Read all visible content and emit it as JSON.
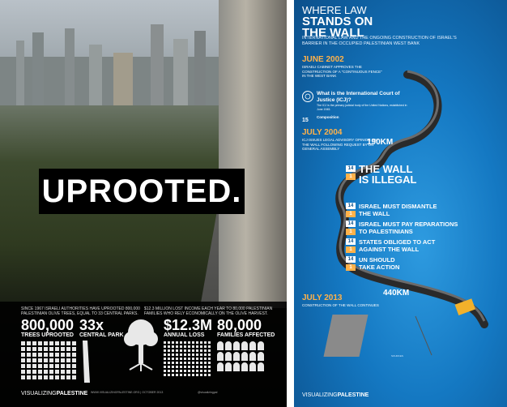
{
  "left": {
    "headline": "UPROOTED.",
    "intro_1": "SINCE 1967 ISRAELI AUTHORITIES HAVE UPROOTED 800,000 PALESTINIAN OLIVE TREES, EQUAL TO 33 CENTRAL PARKS.",
    "intro_2": "$12.3 MILLION LOST INCOME EACH YEAR TO 80,000 PALESTINIAN FAMILIES WHO RELY ECONOMICALLY ON THE OLIVE HARVEST.",
    "stats": [
      {
        "value": "800,000",
        "label": "TREES UPROOTED"
      },
      {
        "value": "33x",
        "label": "CENTRAL PARK"
      },
      {
        "value": "$12.3M",
        "label": "ANNUAL LOSS"
      },
      {
        "value": "80,000",
        "label": "FAMILIES AFFECTED"
      }
    ],
    "brand_plain": "VISUALIZING",
    "brand_bold": "PALESTINE",
    "footer_small": "WWW.VISUALIZINGPALESTINE.ORG | OCTOBER 2013",
    "footer_social": "@visualizingpal"
  },
  "right": {
    "title_line1": "WHERE LAW",
    "title_line2": "STANDS ON",
    "title_line3": "THE WALL",
    "subtitle": "INTERNATIONAL LAW AND THE ONGOING CONSTRUCTION OF ISRAEL'S BARRIER IN THE OCCUPIED PALESTINIAN WEST BANK",
    "date_1": "JUNE 2002",
    "text_1": "ISRAELI CABINET APPROVES THE CONSTRUCTION OF A \"CONTINUOUS FENCE\" IN THE WEST BANK",
    "icj_title": "What is the International Court of Justice (ICJ)?",
    "icj_text": "The ICJ is the primary judicial body of the United Nations, established in June 1945.",
    "composition_label": "Composition",
    "composition_count": "15",
    "date_2": "JULY 2004",
    "text_2": "ICJ ISSUES LEGAL ADVISORY OPINION ON THE WALL FOLLOWING REQUEST BY UN GENERAL ASSEMBLY",
    "km_1": "190KM",
    "verdict_big_1": "THE WALL",
    "verdict_big_2": "IS ILLEGAL",
    "verdict_num_a": "14",
    "verdict_num_b": "1",
    "rulings": [
      {
        "a": "14",
        "b": "1",
        "text_1": "ISRAEL MUST DISMANTLE",
        "text_2": "THE WALL"
      },
      {
        "a": "14",
        "b": "1",
        "text_1": "ISRAEL MUST PAY REPARATIONS",
        "text_2": "TO PALESTINIANS"
      },
      {
        "a": "14",
        "b": "1",
        "text_1": "STATES OBLIGED TO ACT",
        "text_2": "AGAINST THE WALL"
      },
      {
        "a": "14",
        "b": "1",
        "text_1": "UN SHOULD",
        "text_2": "TAKE ACTION"
      }
    ],
    "km_2": "440KM",
    "date_3": "JULY 2013",
    "text_3": "CONSTRUCTION OF THE WALL CONTINUES",
    "sources": "SOURCES",
    "brand_plain": "VISUALIZING",
    "brand_bold": "PALESTINE"
  },
  "colors": {
    "orange": "#ffb24a",
    "blue_dark": "#0b4f8a",
    "blue_light": "#2e9be0"
  }
}
